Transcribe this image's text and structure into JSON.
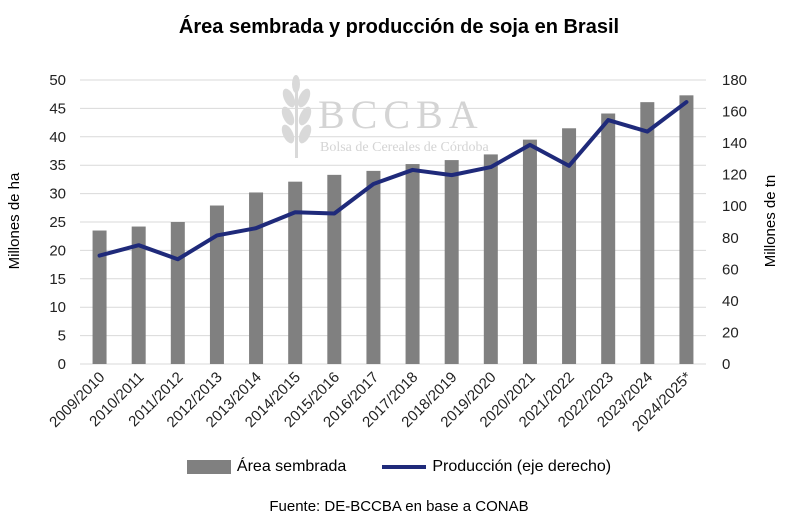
{
  "chart_data": {
    "type": "bar+line",
    "title": "Área sembrada y producción de soja en Brasil",
    "categories": [
      "2009/2010",
      "2010/2011",
      "2011/2012",
      "2012/2013",
      "2013/2014",
      "2014/2015",
      "2015/2016",
      "2016/2017",
      "2017/2018",
      "2018/2019",
      "2019/2020",
      "2020/2021",
      "2021/2022",
      "2022/2023",
      "2023/2024",
      "2024/2025*"
    ],
    "series": [
      {
        "name": "Área sembrada",
        "type": "bar",
        "axis": "left",
        "color": "#808080",
        "values": [
          23.5,
          24.2,
          25.0,
          27.9,
          30.2,
          32.1,
          33.3,
          34.0,
          35.2,
          35.9,
          36.9,
          39.5,
          41.5,
          44.1,
          46.1,
          47.3
        ]
      },
      {
        "name": "Producción (eje derecho)",
        "type": "line",
        "axis": "right",
        "color": "#1f2a7a",
        "values": [
          68.7,
          75.3,
          66.4,
          81.5,
          86.1,
          96.2,
          95.4,
          114.1,
          123.0,
          119.7,
          124.8,
          138.9,
          125.6,
          154.6,
          147.3,
          166.0
        ]
      }
    ],
    "ylabel": "Millones de ha",
    "y2label": "Millones de tn",
    "ylim": [
      0,
      50
    ],
    "y2lim": [
      0,
      180
    ],
    "yticks": [
      0,
      5,
      10,
      15,
      20,
      25,
      30,
      35,
      40,
      45,
      50
    ],
    "y2ticks": [
      0,
      20,
      40,
      60,
      80,
      100,
      120,
      140,
      160,
      180
    ],
    "grid": true,
    "legend": "bottom",
    "source": "Fuente: DE-BCCBA en base a CONAB"
  },
  "watermark": {
    "name": "BCCBA",
    "subtitle": "Bolsa de Cereales de Córdoba"
  }
}
